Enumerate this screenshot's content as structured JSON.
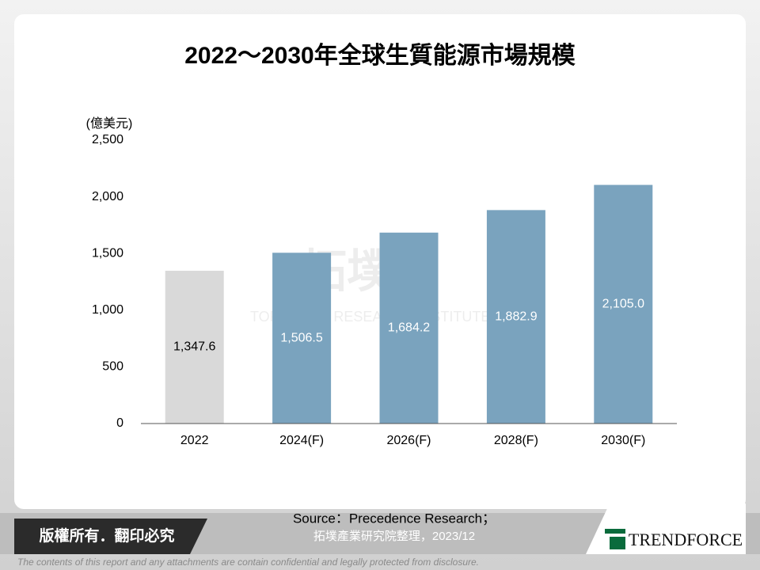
{
  "chart_data": {
    "type": "bar",
    "title": "2022～2030年全球生質能源市場規模",
    "y_axis_label": "(億美元)",
    "categories": [
      "2022",
      "2024(F)",
      "2026(F)",
      "2028(F)",
      "2030(F)"
    ],
    "values": [
      1347.6,
      1506.5,
      1684.2,
      1882.9,
      2105.0
    ],
    "value_labels": [
      "1,347.6",
      "1,506.5",
      "1,684.2",
      "1,882.9",
      "2,105.0"
    ],
    "colors": [
      "#d9d9d9",
      "#7aa3be",
      "#7aa3be",
      "#7aa3be",
      "#7aa3be"
    ],
    "ylim": [
      0,
      2500
    ],
    "yticks": [
      0,
      500,
      {
        "value": 1000,
        "label": "1,000"
      },
      {
        "value": 1500,
        "label": "1,500"
      },
      {
        "value": 2000,
        "label": "2,000"
      },
      {
        "value": 2500,
        "label": "2,500"
      }
    ],
    "grid": false
  },
  "watermark": {
    "name": "拓墣",
    "subtitle": "TOPOLOGY RESEARCH INSTITUTE"
  },
  "footer": {
    "copyright": "版權所有．翻印必究",
    "source_line1": "Source：Precedence Research；",
    "source_line2": "拓墣產業研究院整理，2023/12",
    "logo": "TRENDFORCE",
    "disclaimer": "The contents of this report and any attachments are contain confidential and legally protected from disclosure."
  }
}
